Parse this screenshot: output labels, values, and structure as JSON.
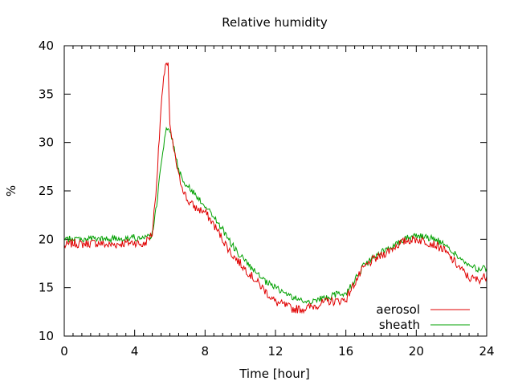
{
  "chart_data": {
    "type": "line",
    "title": "Relative humidity",
    "xlabel": "Time [hour]",
    "ylabel": "%",
    "xlim": [
      0,
      24
    ],
    "ylim": [
      10,
      40
    ],
    "xticks": [
      0,
      4,
      8,
      12,
      16,
      20,
      24
    ],
    "yticks": [
      10,
      15,
      20,
      25,
      30,
      35,
      40
    ],
    "grid": false,
    "legend_position": "bottom-right",
    "x": [
      0,
      0.5,
      1,
      1.5,
      2,
      2.5,
      3,
      3.5,
      4,
      4.5,
      5,
      5.25,
      5.5,
      5.75,
      5.9,
      6,
      6.25,
      6.5,
      7,
      7.5,
      8,
      8.5,
      9,
      9.5,
      10,
      10.5,
      11,
      11.5,
      12,
      12.5,
      13,
      13.5,
      14,
      14.5,
      15,
      15.5,
      16,
      16.5,
      17,
      17.5,
      18,
      18.5,
      19,
      19.5,
      20,
      20.5,
      21,
      21.5,
      22,
      22.5,
      23,
      23.5,
      24
    ],
    "series": [
      {
        "name": "aerosol",
        "color": "#e00000",
        "values": [
          19.3,
          19.6,
          19.5,
          19.6,
          19.6,
          19.4,
          19.5,
          19.6,
          19.7,
          19.4,
          20.6,
          26.0,
          33.5,
          38.3,
          38.0,
          31.5,
          29.0,
          26.5,
          24.0,
          23.2,
          22.8,
          21.5,
          20.0,
          18.5,
          17.5,
          16.5,
          15.5,
          14.5,
          13.5,
          13.2,
          12.8,
          12.8,
          13.0,
          13.3,
          13.6,
          13.6,
          13.8,
          15.5,
          17.0,
          17.8,
          18.3,
          18.9,
          19.5,
          19.9,
          20.0,
          19.8,
          19.5,
          19.0,
          18.0,
          17.0,
          16.0,
          15.8,
          16.2
        ]
      },
      {
        "name": "sheath",
        "color": "#00a000",
        "values": [
          19.9,
          20.1,
          20.0,
          20.1,
          20.0,
          20.0,
          20.1,
          20.1,
          20.2,
          20.0,
          20.5,
          23.5,
          28.0,
          31.0,
          31.5,
          31.2,
          29.5,
          27.0,
          25.5,
          24.5,
          23.5,
          22.3,
          21.0,
          19.5,
          18.3,
          17.3,
          16.3,
          15.5,
          15.0,
          14.5,
          14.0,
          13.6,
          13.6,
          13.8,
          14.0,
          14.3,
          14.4,
          15.8,
          17.2,
          18.0,
          18.6,
          19.2,
          19.7,
          20.2,
          20.4,
          20.3,
          20.0,
          19.6,
          18.8,
          18.0,
          17.2,
          16.9,
          17.0
        ]
      }
    ]
  }
}
